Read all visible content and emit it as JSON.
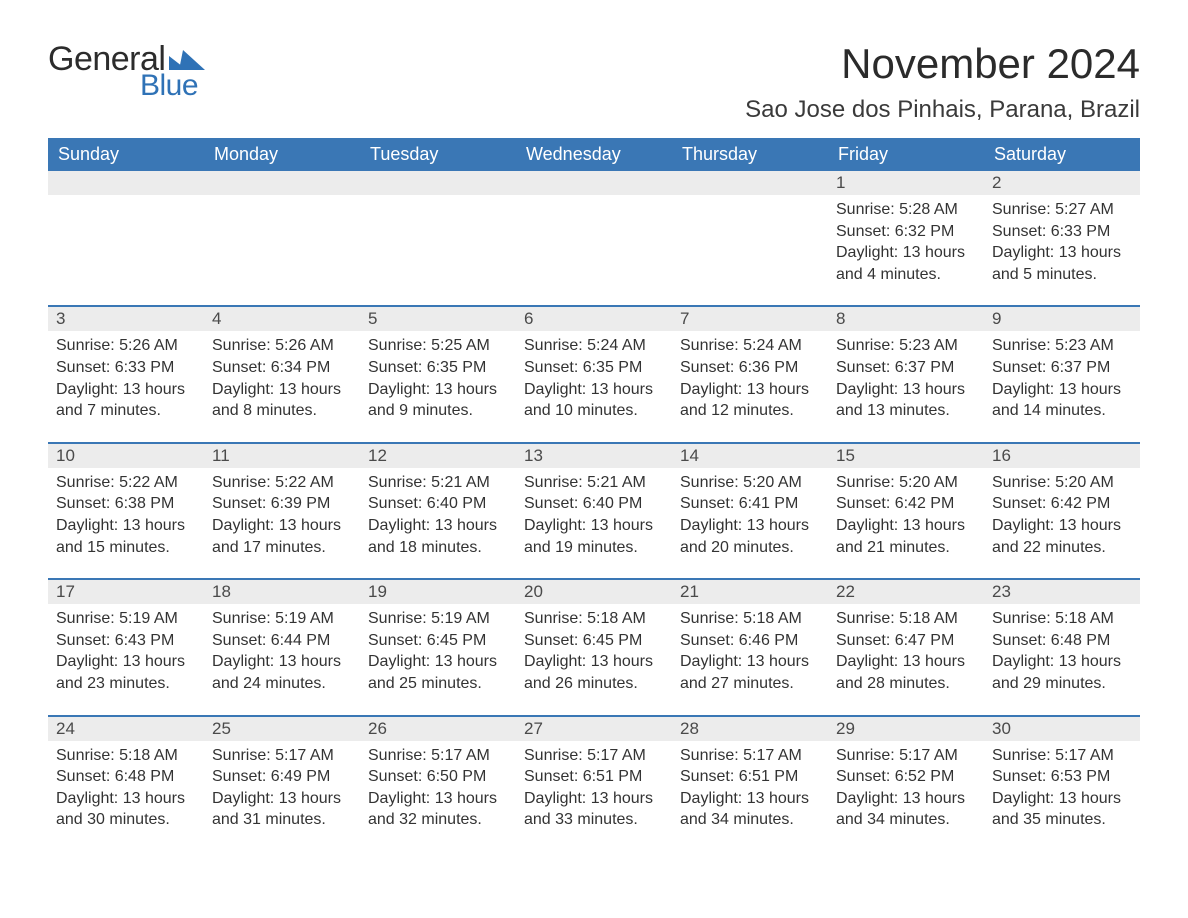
{
  "brand": {
    "word1": "General",
    "word2": "Blue",
    "text_color": "#2c2c2c",
    "accent_color": "#2f72b6"
  },
  "header": {
    "title": "November 2024",
    "location": "Sao Jose dos Pinhais, Parana, Brazil",
    "title_fontsize": 42,
    "location_fontsize": 24
  },
  "calendar": {
    "header_bg": "#3a77b5",
    "header_text_color": "#ffffff",
    "week_separator_color": "#3a77b5",
    "daynum_bg": "#ececec",
    "body_text_color": "#333333",
    "columns": [
      "Sunday",
      "Monday",
      "Tuesday",
      "Wednesday",
      "Thursday",
      "Friday",
      "Saturday"
    ],
    "weeks": [
      [
        {
          "blank": true
        },
        {
          "blank": true
        },
        {
          "blank": true
        },
        {
          "blank": true
        },
        {
          "blank": true
        },
        {
          "day": "1",
          "sunrise": "Sunrise: 5:28 AM",
          "sunset": "Sunset: 6:32 PM",
          "daylight": "Daylight: 13 hours and 4 minutes."
        },
        {
          "day": "2",
          "sunrise": "Sunrise: 5:27 AM",
          "sunset": "Sunset: 6:33 PM",
          "daylight": "Daylight: 13 hours and 5 minutes."
        }
      ],
      [
        {
          "day": "3",
          "sunrise": "Sunrise: 5:26 AM",
          "sunset": "Sunset: 6:33 PM",
          "daylight": "Daylight: 13 hours and 7 minutes."
        },
        {
          "day": "4",
          "sunrise": "Sunrise: 5:26 AM",
          "sunset": "Sunset: 6:34 PM",
          "daylight": "Daylight: 13 hours and 8 minutes."
        },
        {
          "day": "5",
          "sunrise": "Sunrise: 5:25 AM",
          "sunset": "Sunset: 6:35 PM",
          "daylight": "Daylight: 13 hours and 9 minutes."
        },
        {
          "day": "6",
          "sunrise": "Sunrise: 5:24 AM",
          "sunset": "Sunset: 6:35 PM",
          "daylight": "Daylight: 13 hours and 10 minutes."
        },
        {
          "day": "7",
          "sunrise": "Sunrise: 5:24 AM",
          "sunset": "Sunset: 6:36 PM",
          "daylight": "Daylight: 13 hours and 12 minutes."
        },
        {
          "day": "8",
          "sunrise": "Sunrise: 5:23 AM",
          "sunset": "Sunset: 6:37 PM",
          "daylight": "Daylight: 13 hours and 13 minutes."
        },
        {
          "day": "9",
          "sunrise": "Sunrise: 5:23 AM",
          "sunset": "Sunset: 6:37 PM",
          "daylight": "Daylight: 13 hours and 14 minutes."
        }
      ],
      [
        {
          "day": "10",
          "sunrise": "Sunrise: 5:22 AM",
          "sunset": "Sunset: 6:38 PM",
          "daylight": "Daylight: 13 hours and 15 minutes."
        },
        {
          "day": "11",
          "sunrise": "Sunrise: 5:22 AM",
          "sunset": "Sunset: 6:39 PM",
          "daylight": "Daylight: 13 hours and 17 minutes."
        },
        {
          "day": "12",
          "sunrise": "Sunrise: 5:21 AM",
          "sunset": "Sunset: 6:40 PM",
          "daylight": "Daylight: 13 hours and 18 minutes."
        },
        {
          "day": "13",
          "sunrise": "Sunrise: 5:21 AM",
          "sunset": "Sunset: 6:40 PM",
          "daylight": "Daylight: 13 hours and 19 minutes."
        },
        {
          "day": "14",
          "sunrise": "Sunrise: 5:20 AM",
          "sunset": "Sunset: 6:41 PM",
          "daylight": "Daylight: 13 hours and 20 minutes."
        },
        {
          "day": "15",
          "sunrise": "Sunrise: 5:20 AM",
          "sunset": "Sunset: 6:42 PM",
          "daylight": "Daylight: 13 hours and 21 minutes."
        },
        {
          "day": "16",
          "sunrise": "Sunrise: 5:20 AM",
          "sunset": "Sunset: 6:42 PM",
          "daylight": "Daylight: 13 hours and 22 minutes."
        }
      ],
      [
        {
          "day": "17",
          "sunrise": "Sunrise: 5:19 AM",
          "sunset": "Sunset: 6:43 PM",
          "daylight": "Daylight: 13 hours and 23 minutes."
        },
        {
          "day": "18",
          "sunrise": "Sunrise: 5:19 AM",
          "sunset": "Sunset: 6:44 PM",
          "daylight": "Daylight: 13 hours and 24 minutes."
        },
        {
          "day": "19",
          "sunrise": "Sunrise: 5:19 AM",
          "sunset": "Sunset: 6:45 PM",
          "daylight": "Daylight: 13 hours and 25 minutes."
        },
        {
          "day": "20",
          "sunrise": "Sunrise: 5:18 AM",
          "sunset": "Sunset: 6:45 PM",
          "daylight": "Daylight: 13 hours and 26 minutes."
        },
        {
          "day": "21",
          "sunrise": "Sunrise: 5:18 AM",
          "sunset": "Sunset: 6:46 PM",
          "daylight": "Daylight: 13 hours and 27 minutes."
        },
        {
          "day": "22",
          "sunrise": "Sunrise: 5:18 AM",
          "sunset": "Sunset: 6:47 PM",
          "daylight": "Daylight: 13 hours and 28 minutes."
        },
        {
          "day": "23",
          "sunrise": "Sunrise: 5:18 AM",
          "sunset": "Sunset: 6:48 PM",
          "daylight": "Daylight: 13 hours and 29 minutes."
        }
      ],
      [
        {
          "day": "24",
          "sunrise": "Sunrise: 5:18 AM",
          "sunset": "Sunset: 6:48 PM",
          "daylight": "Daylight: 13 hours and 30 minutes."
        },
        {
          "day": "25",
          "sunrise": "Sunrise: 5:17 AM",
          "sunset": "Sunset: 6:49 PM",
          "daylight": "Daylight: 13 hours and 31 minutes."
        },
        {
          "day": "26",
          "sunrise": "Sunrise: 5:17 AM",
          "sunset": "Sunset: 6:50 PM",
          "daylight": "Daylight: 13 hours and 32 minutes."
        },
        {
          "day": "27",
          "sunrise": "Sunrise: 5:17 AM",
          "sunset": "Sunset: 6:51 PM",
          "daylight": "Daylight: 13 hours and 33 minutes."
        },
        {
          "day": "28",
          "sunrise": "Sunrise: 5:17 AM",
          "sunset": "Sunset: 6:51 PM",
          "daylight": "Daylight: 13 hours and 34 minutes."
        },
        {
          "day": "29",
          "sunrise": "Sunrise: 5:17 AM",
          "sunset": "Sunset: 6:52 PM",
          "daylight": "Daylight: 13 hours and 34 minutes."
        },
        {
          "day": "30",
          "sunrise": "Sunrise: 5:17 AM",
          "sunset": "Sunset: 6:53 PM",
          "daylight": "Daylight: 13 hours and 35 minutes."
        }
      ]
    ]
  }
}
